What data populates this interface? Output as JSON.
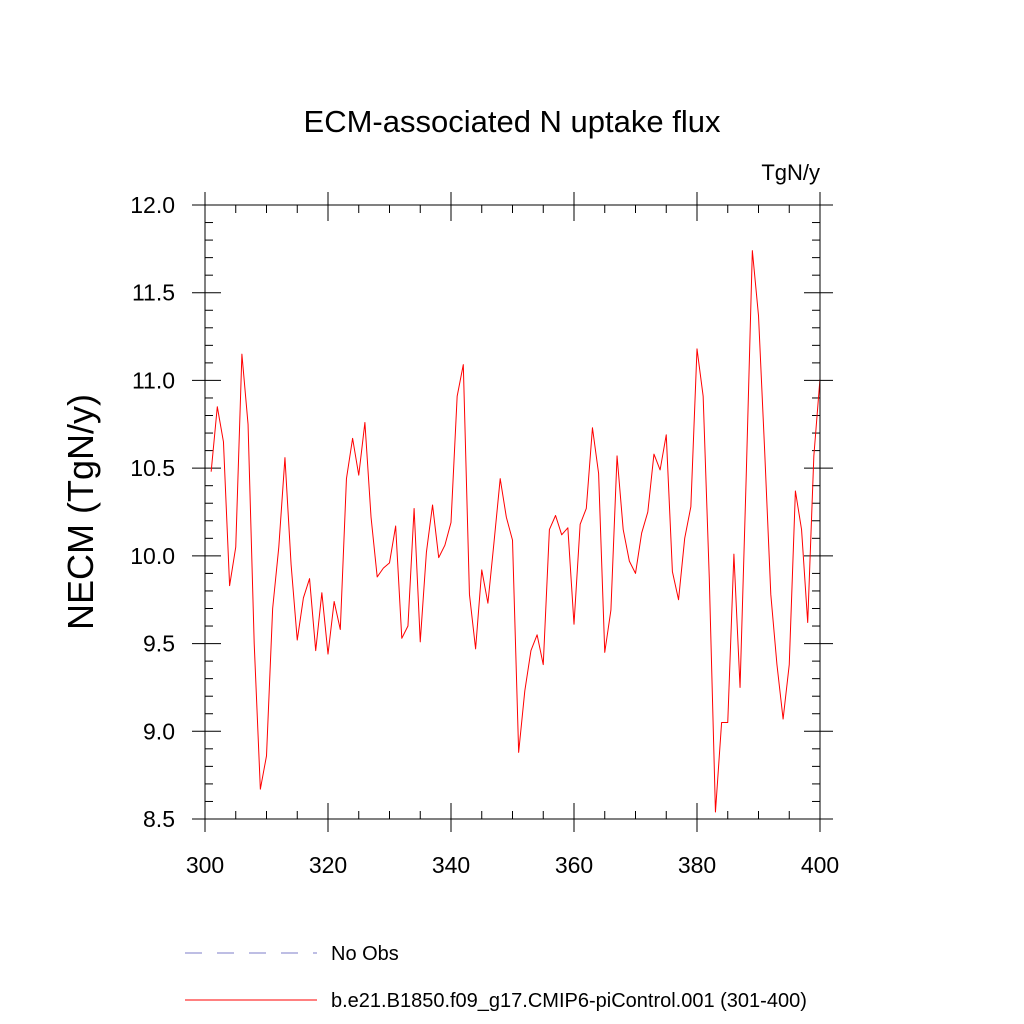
{
  "chart_data": {
    "type": "line",
    "title": "ECM-associated N uptake flux",
    "units_label": "TgN/y",
    "xlabel": "",
    "ylabel": "NECM  (TgN/y)",
    "xlim": [
      300,
      400
    ],
    "ylim": [
      8.5,
      12.0
    ],
    "x_major_ticks": [
      300,
      320,
      340,
      360,
      380,
      400
    ],
    "x_minor_step": 5,
    "x_tick_labels": [
      "300",
      "320",
      "340",
      "360",
      "380",
      "400"
    ],
    "y_major_ticks": [
      8.5,
      9.0,
      9.5,
      10.0,
      10.5,
      11.0,
      11.5,
      12.0
    ],
    "y_minor_step": 0.1,
    "y_tick_labels": [
      "8.5",
      "9.0",
      "9.5",
      "10.0",
      "10.5",
      "11.0",
      "11.5",
      "12.0"
    ],
    "grid": false,
    "legend_position": "bottom",
    "series": [
      {
        "name": "b.e21.B1850.f09_g17.CMIP6-piControl.001 (301-400)",
        "color": "#ff0000",
        "style": "solid",
        "x": [
          301,
          302,
          303,
          304,
          305,
          306,
          307,
          308,
          309,
          310,
          311,
          312,
          313,
          314,
          315,
          316,
          317,
          318,
          319,
          320,
          321,
          322,
          323,
          324,
          325,
          326,
          327,
          328,
          329,
          330,
          331,
          332,
          333,
          334,
          335,
          336,
          337,
          338,
          339,
          340,
          341,
          342,
          343,
          344,
          345,
          346,
          347,
          348,
          349,
          350,
          351,
          352,
          353,
          354,
          355,
          356,
          357,
          358,
          359,
          360,
          361,
          362,
          363,
          364,
          365,
          366,
          367,
          368,
          369,
          370,
          371,
          372,
          373,
          374,
          375,
          376,
          377,
          378,
          379,
          380,
          381,
          382,
          383,
          384,
          385,
          386,
          387,
          388,
          389,
          390,
          391,
          392,
          393,
          394,
          395,
          396,
          397,
          398,
          399,
          400
        ],
        "values": [
          10.48,
          10.85,
          10.65,
          9.83,
          10.05,
          11.15,
          10.75,
          9.5,
          8.67,
          8.86,
          9.7,
          10.05,
          10.56,
          9.95,
          9.52,
          9.76,
          9.87,
          9.46,
          9.79,
          9.44,
          9.74,
          9.58,
          10.44,
          10.67,
          10.46,
          10.76,
          10.22,
          9.88,
          9.93,
          9.96,
          10.17,
          9.53,
          9.6,
          10.27,
          9.51,
          10.02,
          10.29,
          9.99,
          10.06,
          10.19,
          10.91,
          11.09,
          9.78,
          9.47,
          9.92,
          9.73,
          10.08,
          10.44,
          10.22,
          10.09,
          8.88,
          9.23,
          9.46,
          9.55,
          9.38,
          10.15,
          10.23,
          10.12,
          10.16,
          9.61,
          10.18,
          10.27,
          10.73,
          10.47,
          9.45,
          9.69,
          10.57,
          10.15,
          9.97,
          9.9,
          10.13,
          10.25,
          10.58,
          10.49,
          10.69,
          9.91,
          9.75,
          10.1,
          10.28,
          11.18,
          10.91,
          9.87,
          8.54,
          9.05,
          9.05,
          10.01,
          9.25,
          10.45,
          11.74,
          11.37,
          10.6,
          9.78,
          9.38,
          9.07,
          9.38,
          10.37,
          10.15,
          9.62,
          10.57,
          11.01
        ]
      }
    ],
    "legend": [
      {
        "label": "No Obs",
        "color": "#7e7ec8",
        "style": "dashed"
      },
      {
        "label": "b.e21.B1850.f09_g17.CMIP6-piControl.001 (301-400)",
        "color": "#ff0000",
        "style": "solid"
      }
    ]
  }
}
